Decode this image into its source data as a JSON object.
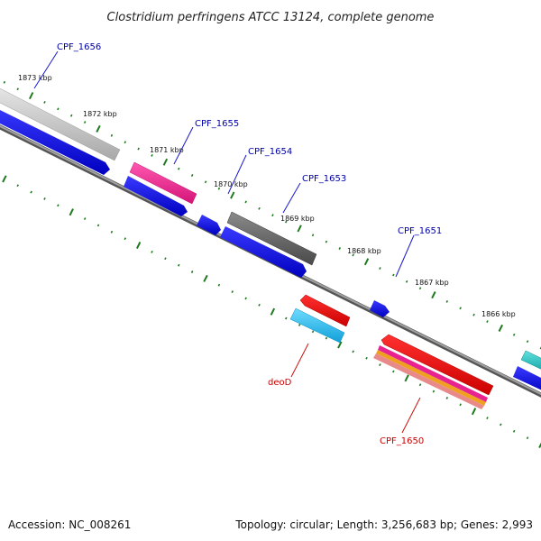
{
  "title": "Clostridium perfringens ATCC 13124, complete genome",
  "footer": {
    "accession": "Accession: NC_008261",
    "summary": "Topology: circular; Length: 3,256,683 bp; Genes: 2,993"
  },
  "colors": {
    "backbone": "#7d7d7d",
    "tick": "#1f7a1f",
    "label_blue": "#0000aa",
    "label_red": "#cc0000",
    "callout_blue": "#1a1acc",
    "callout_red": "#cc1111"
  },
  "scale_ticks": [
    {
      "label": "1873 kbp"
    },
    {
      "label": "1872 kbp"
    },
    {
      "label": "1871 kbp"
    },
    {
      "label": "1870 kbp"
    },
    {
      "label": "1869 kbp"
    },
    {
      "label": "1868 kbp"
    },
    {
      "label": "1867 kbp"
    },
    {
      "label": "1866 kbp"
    }
  ],
  "gene_labels": [
    {
      "text": "CPF_1656",
      "color": "blue"
    },
    {
      "text": "CPF_1655",
      "color": "blue"
    },
    {
      "text": "CPF_1654",
      "color": "blue"
    },
    {
      "text": "CPF_1653",
      "color": "blue"
    },
    {
      "text": "CPF_1651",
      "color": "blue"
    },
    {
      "text": "deoD",
      "color": "red"
    },
    {
      "text": "CPF_1650",
      "color": "red"
    }
  ],
  "features": [
    {
      "name": "silver-feature",
      "color": "#c8c8c8",
      "strand": "outer"
    },
    {
      "name": "blue-gene-large",
      "color": "#0a0ae6",
      "strand": "inner"
    },
    {
      "name": "magenta-feature",
      "color": "#e8238f",
      "strand": "outer"
    },
    {
      "name": "blue-gene",
      "color": "#0a0ae6",
      "strand": "inner"
    },
    {
      "name": "blue-gene-small",
      "color": "#0a0ae6",
      "strand": "inner"
    },
    {
      "name": "dark-grey-feature",
      "color": "#5e5e5e",
      "strand": "outer"
    },
    {
      "name": "blue-gene-long",
      "color": "#0a0ae6",
      "strand": "inner"
    },
    {
      "name": "red-small-feature",
      "color": "#ee0000",
      "strand": "outer"
    },
    {
      "name": "cyan-feature",
      "color": "#1fb8e8",
      "strand": "inner"
    },
    {
      "name": "blue-gene-tiny",
      "color": "#0a0ae6",
      "strand": "inner"
    },
    {
      "name": "red-long-feature",
      "color": "#ee0000",
      "strand": "outer"
    },
    {
      "name": "magenta-stripe",
      "color": "#e8238f",
      "strand": "outer"
    },
    {
      "name": "orange-stripe",
      "color": "#f0a020",
      "strand": "outer"
    },
    {
      "name": "salmon-stripe",
      "color": "#e88a8a",
      "strand": "outer"
    },
    {
      "name": "teal-feature-edge",
      "color": "#18b8b8",
      "strand": "outer"
    },
    {
      "name": "blue-gene-edge",
      "color": "#0a0ae6",
      "strand": "inner"
    }
  ]
}
